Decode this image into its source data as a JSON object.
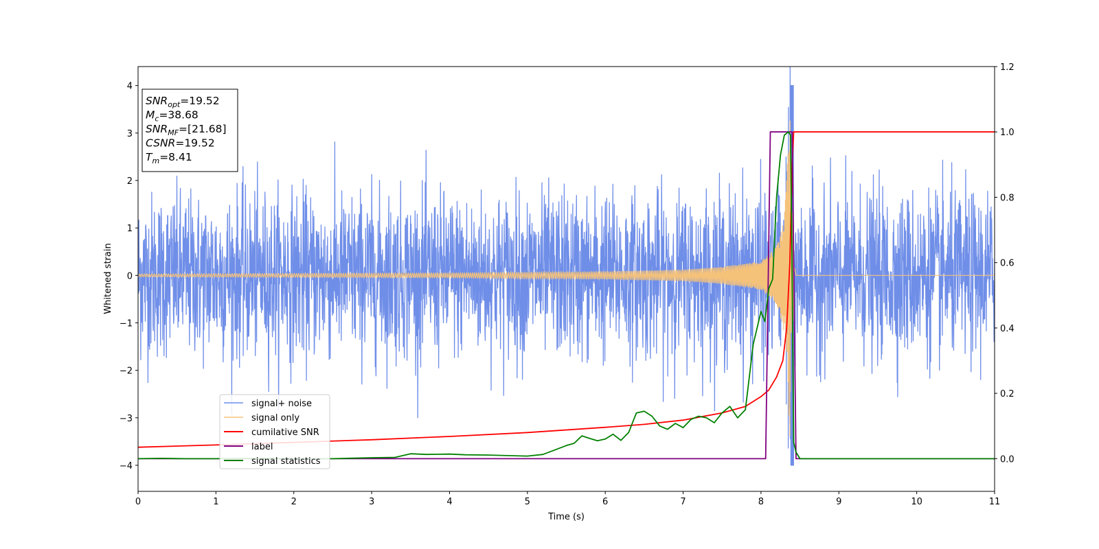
{
  "chart_data": {
    "type": "line",
    "xlabel": "Time (s)",
    "ylabel": "Whitened strain",
    "xlim": [
      0,
      11
    ],
    "ylim_left": [
      -4.55,
      4.4
    ],
    "ylim_right": [
      -0.1,
      1.2
    ],
    "x_ticks": [
      0,
      1,
      2,
      3,
      4,
      5,
      6,
      7,
      8,
      9,
      10,
      11
    ],
    "y_ticks_left": [
      -4,
      -3,
      -2,
      -1,
      0,
      1,
      2,
      3,
      4
    ],
    "y_ticks_right": [
      0.0,
      0.2,
      0.4,
      0.6,
      0.8,
      1.0,
      1.2
    ],
    "legend_placement": "lower-left",
    "annotation": {
      "lines": [
        {
          "main": "SNR",
          "sub": "opt",
          "value": "=19.52"
        },
        {
          "main": "M",
          "sub": "c",
          "value": "=38.68"
        },
        {
          "main": "SNR",
          "sub": "MF",
          "value": "=[21.68]"
        },
        {
          "main": "CSNR",
          "sub": "",
          "value": "=19.52"
        },
        {
          "main": "T",
          "sub": "m",
          "value": "=8.41"
        }
      ]
    },
    "series": [
      {
        "name": "signal+ noise",
        "axis": "left",
        "color": "#6f8ee8",
        "note_shape": "noise band approx +/-1.8 with spikes to about +/-2.9, chirp burst peaking near 4.0 at t=8.4",
        "noise_sigma": 0.85,
        "burst_time": 8.4,
        "burst_peak": 4.0
      },
      {
        "name": "signal only",
        "axis": "left",
        "color": "#f5c27a",
        "x": [
          0,
          2,
          4,
          6,
          7,
          7.5,
          8.0,
          8.2,
          8.3,
          8.38,
          8.42,
          8.45,
          11
        ],
        "amplitude": [
          0.03,
          0.04,
          0.05,
          0.08,
          0.12,
          0.18,
          0.3,
          0.6,
          1.2,
          3.7,
          0.3,
          0.0,
          0.0
        ]
      },
      {
        "name": "cumilative SNR",
        "axis": "right",
        "color": "#ff0000",
        "x": [
          0,
          1,
          2,
          3,
          4,
          5,
          6,
          6.5,
          7,
          7.5,
          7.8,
          8.0,
          8.1,
          8.2,
          8.28,
          8.33,
          8.37,
          8.4,
          8.42,
          11
        ],
        "y": [
          0.035,
          0.042,
          0.05,
          0.058,
          0.068,
          0.08,
          0.096,
          0.105,
          0.118,
          0.14,
          0.16,
          0.19,
          0.21,
          0.25,
          0.3,
          0.4,
          0.6,
          0.9,
          1.0,
          1.0
        ]
      },
      {
        "name": "label",
        "axis": "right",
        "color": "#800080",
        "x": [
          0,
          8.06,
          8.12,
          8.4,
          8.45,
          11
        ],
        "y": [
          0.0,
          0.0,
          1.0,
          1.0,
          0.0,
          0.0
        ]
      },
      {
        "name": "signal statistics",
        "axis": "right",
        "color": "#008000",
        "x": [
          0,
          0.3,
          0.6,
          1,
          1.5,
          2,
          2.5,
          3,
          3.3,
          3.5,
          3.7,
          4,
          4.2,
          4.5,
          5,
          5.2,
          5.5,
          5.6,
          5.7,
          5.8,
          5.9,
          6.0,
          6.1,
          6.2,
          6.3,
          6.4,
          6.5,
          6.6,
          6.7,
          6.8,
          6.9,
          7.0,
          7.1,
          7.2,
          7.3,
          7.4,
          7.5,
          7.6,
          7.7,
          7.8,
          7.9,
          8.0,
          8.05,
          8.1,
          8.15,
          8.2,
          8.25,
          8.3,
          8.35,
          8.38,
          8.4,
          8.42,
          8.45,
          8.5,
          8.7,
          9,
          10,
          11
        ],
        "y": [
          0.0,
          0.001,
          0.0,
          0.0,
          0.001,
          0.0,
          0.0,
          0.003,
          0.004,
          0.015,
          0.013,
          0.014,
          0.012,
          0.011,
          0.008,
          0.013,
          0.04,
          0.047,
          0.07,
          0.062,
          0.055,
          0.06,
          0.075,
          0.056,
          0.08,
          0.14,
          0.145,
          0.13,
          0.1,
          0.09,
          0.108,
          0.095,
          0.12,
          0.13,
          0.125,
          0.11,
          0.14,
          0.16,
          0.125,
          0.15,
          0.35,
          0.45,
          0.42,
          0.52,
          0.55,
          0.8,
          0.93,
          0.99,
          1.0,
          0.99,
          0.55,
          0.05,
          0.02,
          0.0,
          0.0,
          0.0,
          0.0,
          0.0
        ]
      }
    ]
  }
}
